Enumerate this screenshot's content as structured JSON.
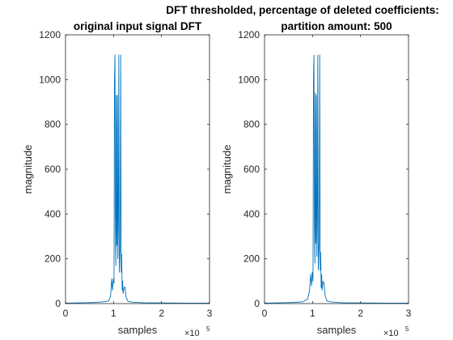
{
  "figure": {
    "background": "#ffffff",
    "line_color": "#0072bd",
    "axis_color": "#262626"
  },
  "chart_data": [
    {
      "type": "line",
      "title": "original input signal DFT",
      "xlabel": "samples",
      "ylabel": "magnitude",
      "xlim": [
        0,
        300000
      ],
      "ylim": [
        0,
        1200
      ],
      "x_ticks": [
        "0",
        "1",
        "2",
        "3"
      ],
      "x_exponent_base": "×10",
      "x_exponent": "5",
      "y_ticks": [
        "0",
        "200",
        "400",
        "600",
        "800",
        "1000",
        "1200"
      ],
      "grid": false,
      "series": [
        {
          "x": [
            0,
            20000,
            40000,
            60000,
            80000,
            90000,
            94000,
            96000,
            98000,
            99500,
            101000,
            102000,
            103000,
            104000,
            105000,
            106000,
            107000,
            108000,
            109000,
            110000,
            111000,
            112000,
            113000,
            114000,
            115000,
            116000,
            117000,
            118000,
            119000,
            120000,
            122000,
            124000,
            126000,
            128000,
            130000,
            140000,
            160000,
            200000,
            250000,
            300000
          ],
          "y": [
            2,
            3,
            4,
            5,
            8,
            12,
            35,
            110,
            60,
            110,
            90,
            1000,
            1110,
            300,
            170,
            930,
            260,
            930,
            200,
            340,
            1110,
            140,
            200,
            260,
            1110,
            140,
            220,
            60,
            100,
            45,
            70,
            75,
            30,
            20,
            10,
            6,
            4,
            3,
            2,
            2
          ]
        }
      ]
    },
    {
      "type": "line",
      "title_lines": [
        "DFT thresholded, percentage of deleted coefficients:",
        "partition amount: 500"
      ],
      "xlabel": "samples",
      "ylabel": "magnitude",
      "xlim": [
        0,
        300000
      ],
      "ylim": [
        0,
        1200
      ],
      "x_ticks": [
        "0",
        "1",
        "2",
        "3"
      ],
      "x_exponent_base": "×10",
      "x_exponent": "5",
      "y_ticks": [
        "0",
        "200",
        "400",
        "600",
        "800",
        "1000",
        "1200"
      ],
      "grid": false,
      "series": [
        {
          "x": [
            0,
            20000,
            40000,
            60000,
            80000,
            90000,
            94000,
            96000,
            98000,
            99500,
            101000,
            102000,
            103000,
            104000,
            105000,
            106000,
            107000,
            108000,
            109000,
            110000,
            111000,
            112000,
            113000,
            114000,
            115000,
            116000,
            117000,
            118000,
            119000,
            120000,
            122000,
            124000,
            126000,
            128000,
            130000,
            140000,
            160000,
            200000,
            250000,
            300000
          ],
          "y": [
            2,
            3,
            4,
            5,
            8,
            20,
            60,
            130,
            80,
            140,
            100,
            1000,
            1110,
            310,
            180,
            940,
            270,
            930,
            210,
            350,
            1110,
            150,
            210,
            270,
            1110,
            150,
            230,
            70,
            130,
            60,
            100,
            90,
            40,
            25,
            12,
            7,
            4,
            3,
            2,
            2
          ]
        }
      ]
    }
  ]
}
